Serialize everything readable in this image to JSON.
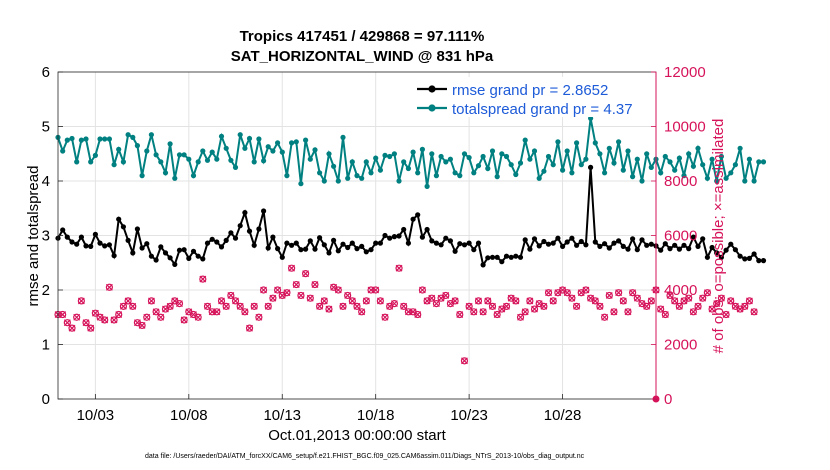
{
  "colors": {
    "rmse": "#000000",
    "spread": "#008080",
    "obs": "#d6135a",
    "legend_text": "#1d5bd8"
  },
  "chart_data": {
    "type": "line",
    "title_line1": "Tropics 417451 / 429868 = 97.111%",
    "title_line2": "SAT_HORIZONTAL_WIND @ 831 hPa",
    "ylabel": "rmse and totalspread",
    "y2label": "# of obs: o=possible; ×=assimilated",
    "xlabel": "Oct.01,2013 00:00:00 start",
    "footer": "data file: /Users/raeder/DAI/ATM_forcXX/CAM6_setup/f.e21.FHIST_BGC.f09_025.CAM6assim.011/Diags_NTrS_2013-10/obs_diag_output.nc",
    "xlim": [
      1,
      33
    ],
    "ylim": [
      0,
      6
    ],
    "y2lim": [
      0,
      12000
    ],
    "xticks": [
      3,
      8,
      13,
      18,
      23,
      28
    ],
    "xtick_labels": [
      "10/03",
      "10/08",
      "10/13",
      "10/18",
      "10/23",
      "10/28"
    ],
    "yticks": [
      0,
      1,
      2,
      3,
      4,
      5,
      6
    ],
    "ytick_labels": [
      "0",
      "1",
      "2",
      "3",
      "4",
      "5",
      "6"
    ],
    "y2ticks": [
      0,
      2000,
      4000,
      6000,
      8000,
      10000,
      12000
    ],
    "y2tick_labels": [
      "0",
      "2000",
      "4000",
      "6000",
      "8000",
      "10000",
      "12000"
    ],
    "legend": [
      {
        "name": "rmse grand pr = 2.8652",
        "series": "rmse"
      },
      {
        "name": "totalspread grand pr = 4.37",
        "series": "spread"
      }
    ],
    "legend_position": "top-right",
    "series": [
      {
        "name": "rmse",
        "x_start": 1.0,
        "x_step": 0.25,
        "values": [
          2.95,
          3.1,
          2.97,
          2.88,
          2.84,
          2.97,
          2.81,
          2.8,
          3.02,
          2.86,
          2.81,
          2.83,
          2.63,
          3.3,
          3.16,
          2.91,
          2.68,
          3.12,
          2.77,
          2.85,
          2.62,
          2.55,
          2.79,
          2.68,
          2.59,
          2.47,
          2.73,
          2.74,
          2.58,
          2.71,
          2.62,
          2.57,
          2.86,
          2.93,
          2.88,
          2.79,
          2.91,
          3.05,
          2.95,
          3.18,
          3.42,
          3.08,
          2.82,
          3.12,
          3.45,
          2.77,
          2.97,
          2.76,
          2.6,
          2.86,
          2.82,
          2.86,
          2.74,
          2.75,
          2.9,
          2.75,
          2.96,
          2.83,
          2.68,
          2.91,
          2.72,
          2.84,
          2.78,
          2.86,
          2.76,
          2.8,
          2.7,
          2.74,
          2.86,
          2.86,
          3.0,
          2.95,
          2.98,
          2.99,
          3.11,
          2.86,
          3.3,
          3.38,
          2.97,
          3.11,
          2.9,
          2.86,
          2.83,
          2.95,
          2.9,
          2.71,
          2.85,
          2.83,
          2.86,
          2.74,
          2.86,
          2.46,
          2.59,
          2.6,
          2.6,
          2.52,
          2.62,
          2.6,
          2.62,
          2.6,
          2.92,
          2.75,
          2.94,
          2.81,
          2.89,
          2.84,
          2.86,
          2.95,
          2.8,
          2.88,
          2.95,
          2.82,
          2.89,
          2.83,
          4.25,
          2.88,
          2.8,
          2.85,
          2.77,
          2.86,
          2.9,
          2.8,
          2.75,
          2.94,
          2.74,
          2.92,
          2.82,
          2.84,
          2.81,
          2.73,
          2.85,
          2.76,
          2.82,
          2.75,
          2.82,
          2.76,
          2.97,
          2.8,
          2.94,
          2.6,
          2.78,
          2.68,
          2.6,
          2.73,
          2.84,
          2.74,
          2.62,
          2.57,
          2.58,
          2.66,
          2.54,
          2.54
        ]
      },
      {
        "name": "totalspread",
        "x_start": 1.0,
        "x_step": 0.25,
        "values": [
          4.8,
          4.55,
          4.75,
          4.78,
          4.35,
          4.75,
          4.77,
          4.35,
          4.47,
          4.77,
          4.77,
          4.77,
          4.3,
          4.58,
          4.35,
          4.85,
          4.8,
          4.65,
          4.1,
          4.55,
          4.85,
          4.48,
          4.35,
          4.15,
          4.68,
          4.05,
          4.48,
          4.48,
          4.4,
          4.1,
          4.35,
          4.55,
          4.38,
          4.53,
          4.4,
          4.82,
          4.6,
          4.38,
          4.25,
          4.85,
          4.6,
          4.78,
          4.35,
          4.77,
          4.37,
          4.63,
          4.55,
          4.7,
          4.53,
          4.1,
          4.7,
          4.72,
          3.95,
          4.75,
          4.4,
          4.57,
          4.15,
          4.0,
          4.5,
          4.27,
          4.0,
          4.8,
          4.05,
          4.35,
          4.1,
          4.05,
          4.35,
          4.15,
          4.42,
          4.2,
          4.47,
          4.45,
          4.5,
          4.0,
          4.35,
          4.23,
          4.53,
          4.15,
          4.58,
          3.9,
          4.5,
          4.1,
          4.45,
          4.35,
          4.4,
          4.15,
          4.1,
          4.5,
          4.43,
          4.15,
          4.28,
          4.45,
          4.23,
          4.55,
          4.08,
          4.5,
          4.45,
          4.3,
          4.12,
          4.33,
          4.75,
          4.4,
          4.55,
          4.05,
          4.18,
          4.45,
          4.3,
          4.72,
          4.2,
          4.55,
          4.15,
          4.7,
          4.3,
          4.4,
          5.15,
          4.7,
          4.5,
          4.15,
          4.6,
          4.33,
          4.72,
          4.2,
          4.55,
          4.08,
          4.4,
          4.0,
          4.5,
          4.25,
          4.4,
          4.15,
          4.45,
          4.35,
          4.2,
          4.42,
          4.1,
          4.5,
          4.27,
          4.6,
          4.3,
          4.05,
          4.4,
          4.0,
          4.45,
          4.05,
          4.15,
          4.3,
          4.6,
          4.0,
          4.4,
          4.0,
          4.35,
          4.35
        ]
      },
      {
        "name": "obs possible",
        "x_start": 1.0,
        "x_step": 0.25,
        "values": [
          3100,
          3100,
          2800,
          2600,
          3000,
          3600,
          2800,
          2600,
          3150,
          3000,
          2900,
          4100,
          2900,
          3100,
          3400,
          3600,
          3400,
          2800,
          2700,
          3000,
          3600,
          3200,
          3000,
          3300,
          3400,
          3600,
          3500,
          2900,
          3200,
          3100,
          3000,
          4400,
          3400,
          3200,
          3200,
          3600,
          3400,
          3800,
          3600,
          3400,
          3200,
          2600,
          3400,
          3000,
          4000,
          3400,
          3700,
          4000,
          3800,
          3900,
          4800,
          4200,
          3800,
          4600,
          3700,
          4200,
          3400,
          3600,
          3300,
          4100,
          4000,
          3400,
          3800,
          3600,
          3400,
          3200,
          3600,
          4000,
          4000,
          3600,
          3000,
          3400,
          3500,
          4800,
          3400,
          3200,
          3200,
          3100,
          4000,
          3600,
          3700,
          3500,
          3700,
          3800,
          3500,
          3600,
          3100,
          1400,
          3400,
          3200,
          3600,
          3200,
          3600,
          3400,
          3100,
          3300,
          3400,
          3700,
          3600,
          3000,
          3200,
          3600,
          3300,
          3500,
          3400,
          3900,
          3600,
          3900,
          4000,
          3900,
          3700,
          3400,
          3900,
          4000,
          3700,
          3600,
          3400,
          3000,
          3800,
          3200,
          3900,
          3600,
          3200,
          3900,
          3700,
          3500,
          3400,
          3600,
          4000,
          3300,
          3100,
          3800,
          3600,
          3400,
          3600,
          3700,
          3200,
          3400,
          3700,
          3900,
          3300,
          3500,
          3700,
          3100,
          3600,
          3400,
          3300,
          3400,
          3600,
          3200
        ]
      }
    ]
  }
}
